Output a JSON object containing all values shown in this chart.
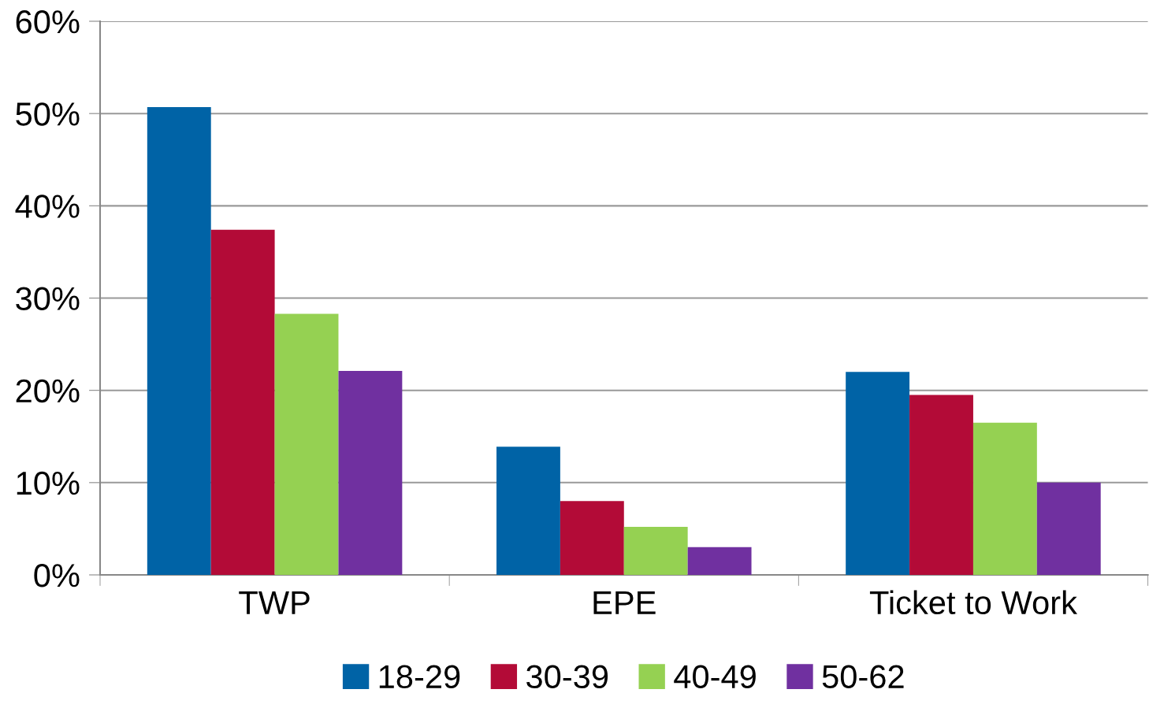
{
  "chart_data": {
    "type": "bar",
    "categories": [
      "TWP",
      "EPE",
      "Ticket to Work"
    ],
    "series": [
      {
        "name": "18-29",
        "color": "#0063a6",
        "values": [
          50.7,
          13.9,
          22.0
        ]
      },
      {
        "name": "30-39",
        "color": "#b30b37",
        "values": [
          37.4,
          8.0,
          19.5
        ]
      },
      {
        "name": "40-49",
        "color": "#95d152",
        "values": [
          28.3,
          5.2,
          16.5
        ]
      },
      {
        "name": "50-62",
        "color": "#7030a0",
        "values": [
          22.1,
          3.0,
          10.0
        ]
      }
    ],
    "ylim": [
      0,
      60
    ],
    "yticks": [
      {
        "value": 0,
        "label": "0%"
      },
      {
        "value": 10,
        "label": "10%"
      },
      {
        "value": 20,
        "label": "20%"
      },
      {
        "value": 30,
        "label": "30%"
      },
      {
        "value": 40,
        "label": "40%"
      },
      {
        "value": 50,
        "label": "50%"
      },
      {
        "value": 60,
        "label": "60%"
      }
    ],
    "grid": "y",
    "legend": "bottom"
  }
}
